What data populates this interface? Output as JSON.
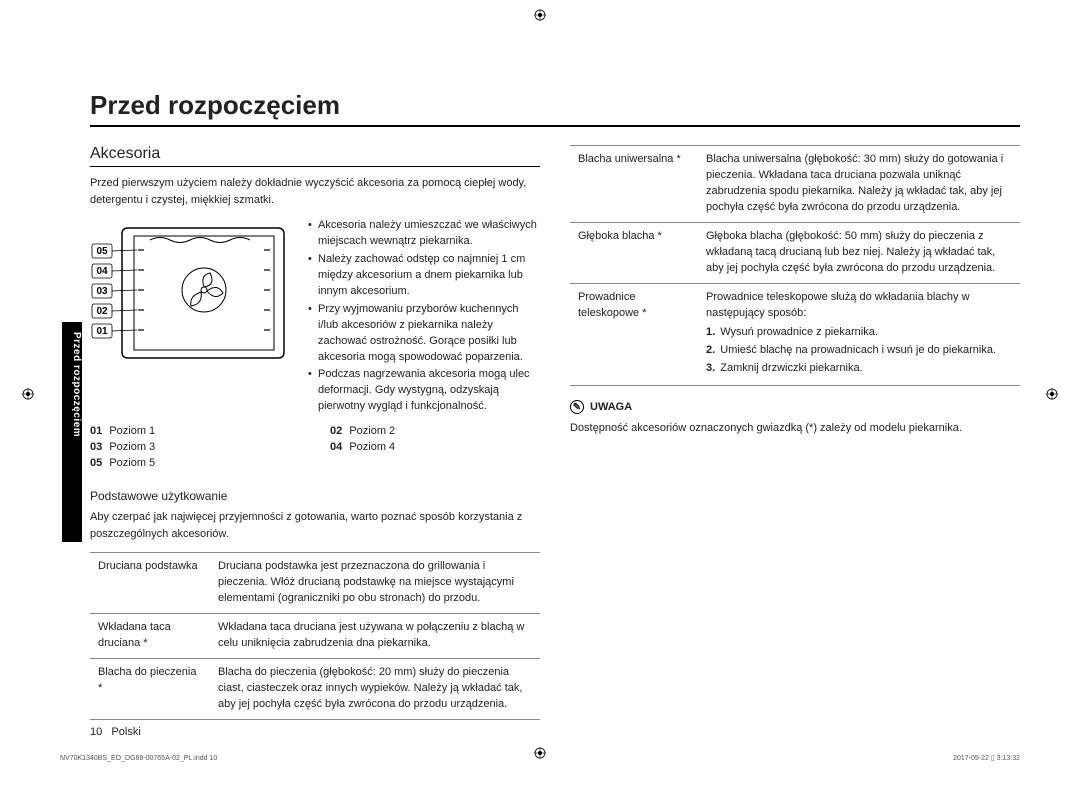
{
  "title": "Przed rozpoczęciem",
  "sideTab": "Przed rozpoczęciem",
  "section": "Akcesoria",
  "intro": "Przed pierwszym użyciem należy dokładnie wyczyścić akcesoria za pomocą ciepłej wody, detergentu i czystej, miękkiej szmatki.",
  "ovenLevels": [
    "05",
    "04",
    "03",
    "02",
    "01"
  ],
  "bullets": [
    "Akcesoria należy umieszczać we właściwych miejscach wewnątrz piekarnika.",
    "Należy zachować odstęp co najmniej 1 cm między akcesorium a dnem piekarnika lub innym akcesorium.",
    "Przy wyjmowaniu przyborów kuchennych i/lub akcesoriów z piekarnika należy zachować ostrożność. Gorące posiłki lub akcesoria mogą spowodować poparzenia.",
    "Podczas nagrzewania akcesoria mogą ulec deformacji. Gdy wystygną, odzyskają pierwotny wygląd i funkcjonalność."
  ],
  "levels": [
    {
      "n": "01",
      "t": "Poziom 1"
    },
    {
      "n": "02",
      "t": "Poziom 2"
    },
    {
      "n": "03",
      "t": "Poziom 3"
    },
    {
      "n": "04",
      "t": "Poziom 4"
    },
    {
      "n": "05",
      "t": "Poziom 5"
    }
  ],
  "basic": {
    "head": "Podstawowe użytkowanie",
    "desc": "Aby czerpać jak najwięcej przyjemności z gotowania, warto poznać sposób korzystania z poszczególnych akcesoriów."
  },
  "tableLeft": [
    {
      "name": "Druciana podstawka",
      "desc": "Druciana podstawka jest przeznaczona do grillowania i pieczenia. Włóż drucianą podstawkę na miejsce wystającymi elementami (ograniczniki po obu stronach) do przodu."
    },
    {
      "name": "Wkładana taca druciana *",
      "desc": "Wkładana taca druciana jest używana w połączeniu z blachą w celu uniknięcia zabrudzenia dna piekarnika."
    },
    {
      "name": "Blacha do pieczenia *",
      "desc": "Blacha do pieczenia (głębokość: 20 mm) służy do pieczenia ciast, ciasteczek oraz innych wypieków. Należy ją wkładać tak, aby jej pochyła część była zwrócona do przodu urządzenia."
    }
  ],
  "tableRight": [
    {
      "name": "Blacha uniwersalna *",
      "desc": "Blacha uniwersalna (głębokość: 30 mm) służy do gotowania i pieczenia. Wkładana taca druciana pozwala uniknąć zabrudzenia spodu piekarnika.\nNależy ją wkładać tak, aby jej pochyła część była zwrócona do przodu urządzenia."
    },
    {
      "name": "Głęboka blacha *",
      "desc": "Głęboka blacha (głębokość: 50 mm) służy do pieczenia z wkładaną tacą drucianą lub bez niej. Należy ją wkładać tak, aby jej pochyła część była zwrócona do przodu urządzenia."
    },
    {
      "name": "Prowadnice teleskopowe *",
      "desc": "Prowadnice teleskopowe służą do wkładania blachy w następujący sposób:",
      "steps": [
        "Wysuń prowadnice z piekarnika.",
        "Umieść blachę na prowadnicach i wsuń je do piekarnika.",
        "Zamknij drzwiczki piekarnika."
      ]
    }
  ],
  "note": {
    "head": "UWAGA",
    "text": "Dostępność akcesoriów oznaczonych gwiazdką (*) zależy od modelu piekarnika."
  },
  "footer": {
    "page": "10",
    "lang": "Polski"
  },
  "imprint": {
    "left": "NV70K1340BS_EO_DG68-00765A-02_PL.indd   10",
    "right": "2017-05-22   ▯ 3:13:32"
  }
}
